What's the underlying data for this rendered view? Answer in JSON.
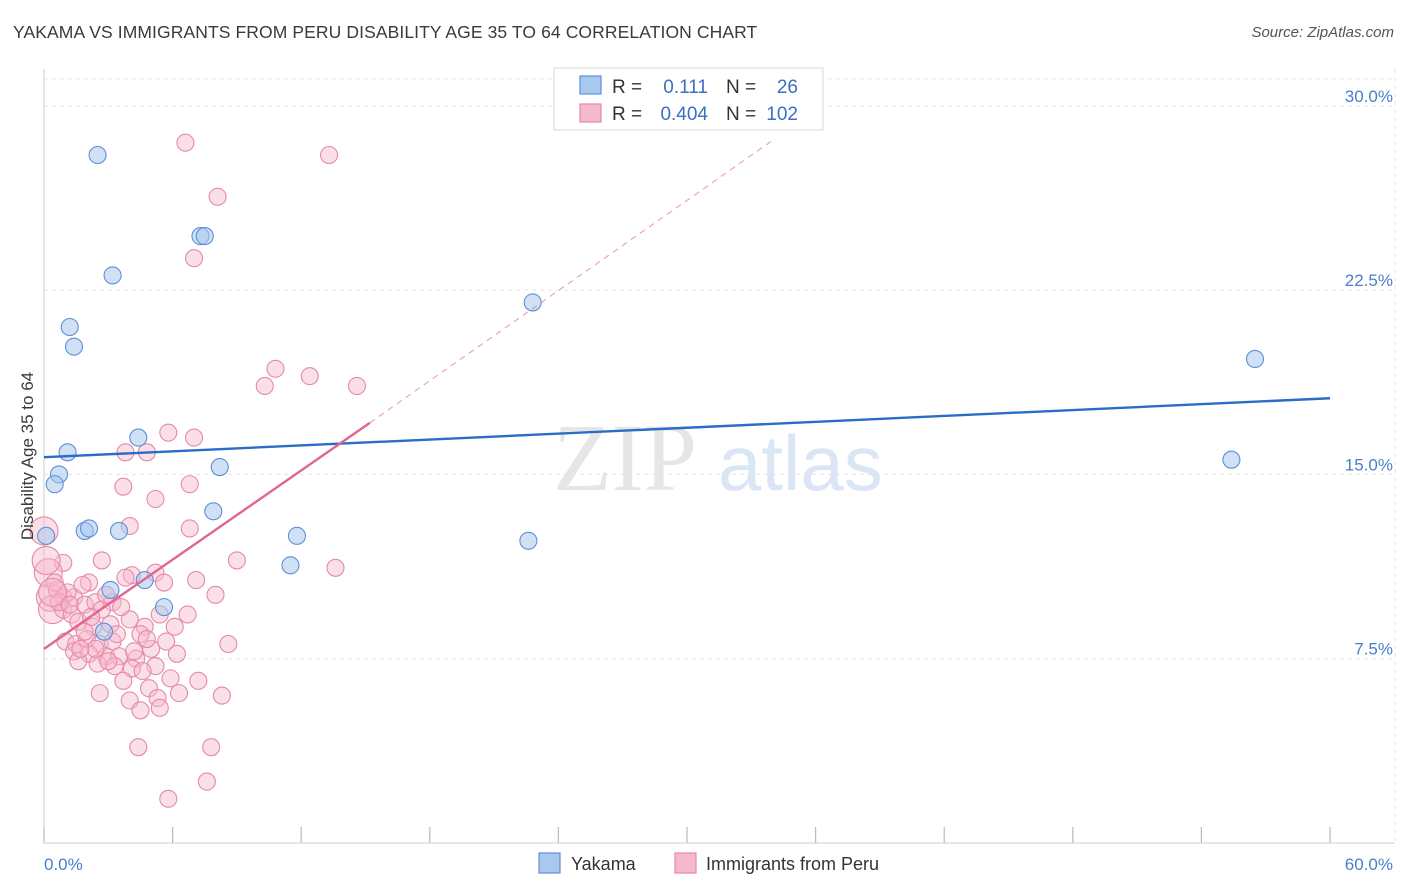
{
  "title": "YAKAMA VS IMMIGRANTS FROM PERU DISABILITY AGE 35 TO 64 CORRELATION CHART",
  "source": "Source: ZipAtlas.com",
  "watermark": {
    "zip": "ZIP",
    "atlas": "atlas"
  },
  "colors": {
    "yakama_fill": "#a9c8ee",
    "yakama_stroke": "#5d8fd6",
    "yakama_line": "#2a6cc8",
    "peru_fill": "#f6b8cb",
    "peru_stroke": "#e58aa7",
    "peru_line": "#e06690",
    "tick_text": "#4a7fc8",
    "grid": "#e3e3e3"
  },
  "legend": {
    "rows": [
      {
        "r_label": "R =",
        "r_value": "0.111",
        "n_label": "N =",
        "n_value": "26"
      },
      {
        "r_label": "R =",
        "r_value": "0.404",
        "n_label": "N =",
        "n_value": "102"
      }
    ]
  },
  "chart_data": {
    "type": "scatter",
    "title": "YAKAMA VS IMMIGRANTS FROM PERU DISABILITY AGE 35 TO 64 CORRELATION CHART",
    "xlabel": "",
    "ylabel": "Disability Age 35 to 64",
    "xlim": [
      0,
      60
    ],
    "ylim": [
      0,
      31.5
    ],
    "x_tick_labels": [
      {
        "value": 0,
        "label": "0.0%"
      },
      {
        "value": 60,
        "label": "60.0%"
      }
    ],
    "y_ticks": [
      {
        "value": 7.5,
        "label": "7.5%"
      },
      {
        "value": 15,
        "label": "15.0%"
      },
      {
        "value": 22.5,
        "label": "22.5%"
      },
      {
        "value": 30,
        "label": "30.0%"
      }
    ],
    "series": [
      {
        "name": "Yakama",
        "r": 0.111,
        "n": 26,
        "trend": {
          "x0": 0,
          "y0": 15.7,
          "x1": 60,
          "y1": 18.1
        },
        "points": [
          [
            2.5,
            28.0
          ],
          [
            7.3,
            24.7
          ],
          [
            7.5,
            24.7
          ],
          [
            3.2,
            23.1
          ],
          [
            1.2,
            21.0
          ],
          [
            1.4,
            20.2
          ],
          [
            1.1,
            15.9
          ],
          [
            0.7,
            15.0
          ],
          [
            0.5,
            14.6
          ],
          [
            4.4,
            16.5
          ],
          [
            8.2,
            15.3
          ],
          [
            7.9,
            13.5
          ],
          [
            1.9,
            12.7
          ],
          [
            2.1,
            12.8
          ],
          [
            3.5,
            12.7
          ],
          [
            11.8,
            12.5
          ],
          [
            11.5,
            11.3
          ],
          [
            0.1,
            12.5
          ],
          [
            3.1,
            10.3
          ],
          [
            4.7,
            10.7
          ],
          [
            5.6,
            9.6
          ],
          [
            2.8,
            8.6
          ],
          [
            22.6,
            12.3
          ],
          [
            22.8,
            22.0
          ],
          [
            56.5,
            19.7
          ],
          [
            55.4,
            15.6
          ]
        ]
      },
      {
        "name": "Immigrants from Peru",
        "r": 0.404,
        "n": 102,
        "trend": {
          "x0": 0,
          "y0": 7.9,
          "x1": 15.2,
          "y1": 17.1
        },
        "trend_dashed": {
          "x0": 15.2,
          "y0": 17.1,
          "x1": 34.0,
          "y1": 28.6
        },
        "points": [
          [
            6.6,
            28.5
          ],
          [
            13.3,
            28.0
          ],
          [
            8.1,
            26.3
          ],
          [
            7.0,
            23.8
          ],
          [
            10.8,
            19.3
          ],
          [
            12.4,
            19.0
          ],
          [
            10.3,
            18.6
          ],
          [
            14.6,
            18.6
          ],
          [
            5.8,
            16.7
          ],
          [
            7.0,
            16.5
          ],
          [
            4.8,
            15.9
          ],
          [
            3.8,
            15.9
          ],
          [
            3.7,
            14.5
          ],
          [
            6.8,
            14.6
          ],
          [
            5.2,
            14.0
          ],
          [
            0.0,
            12.7
          ],
          [
            4.0,
            12.9
          ],
          [
            6.8,
            12.8
          ],
          [
            0.9,
            11.4
          ],
          [
            2.7,
            11.5
          ],
          [
            4.1,
            10.9
          ],
          [
            5.2,
            11.0
          ],
          [
            2.1,
            10.6
          ],
          [
            5.6,
            10.6
          ],
          [
            7.1,
            10.7
          ],
          [
            9.0,
            11.5
          ],
          [
            13.6,
            11.2
          ],
          [
            8.0,
            10.1
          ],
          [
            0.3,
            10.0
          ],
          [
            0.6,
            10.3
          ],
          [
            0.9,
            10.0
          ],
          [
            1.4,
            10.0
          ],
          [
            1.9,
            9.7
          ],
          [
            2.4,
            9.8
          ],
          [
            3.2,
            9.8
          ],
          [
            3.8,
            10.8
          ],
          [
            0.4,
            9.5
          ],
          [
            0.9,
            9.5
          ],
          [
            1.3,
            9.3
          ],
          [
            2.7,
            9.5
          ],
          [
            5.4,
            9.3
          ],
          [
            1.6,
            9.0
          ],
          [
            2.3,
            8.8
          ],
          [
            3.1,
            8.9
          ],
          [
            4.0,
            9.1
          ],
          [
            4.7,
            8.8
          ],
          [
            6.1,
            8.8
          ],
          [
            1.0,
            8.2
          ],
          [
            1.5,
            8.1
          ],
          [
            2.0,
            8.3
          ],
          [
            2.6,
            8.1
          ],
          [
            3.2,
            8.2
          ],
          [
            4.5,
            8.5
          ],
          [
            8.6,
            8.1
          ],
          [
            1.4,
            7.8
          ],
          [
            2.1,
            7.7
          ],
          [
            2.9,
            7.6
          ],
          [
            3.5,
            7.6
          ],
          [
            4.3,
            7.5
          ],
          [
            5.0,
            7.9
          ],
          [
            6.2,
            7.7
          ],
          [
            1.6,
            7.4
          ],
          [
            2.5,
            7.3
          ],
          [
            3.3,
            7.2
          ],
          [
            4.1,
            7.1
          ],
          [
            5.2,
            7.2
          ],
          [
            5.9,
            6.7
          ],
          [
            7.2,
            6.6
          ],
          [
            3.7,
            6.6
          ],
          [
            4.9,
            6.3
          ],
          [
            2.6,
            6.1
          ],
          [
            4.0,
            5.8
          ],
          [
            5.3,
            5.9
          ],
          [
            6.3,
            6.1
          ],
          [
            8.3,
            6.0
          ],
          [
            4.5,
            5.4
          ],
          [
            5.4,
            5.5
          ],
          [
            4.4,
            3.9
          ],
          [
            7.8,
            3.9
          ],
          [
            7.6,
            2.5
          ],
          [
            5.8,
            1.8
          ],
          [
            0.2,
            11.0
          ],
          [
            0.5,
            10.6
          ],
          [
            1.1,
            10.2
          ],
          [
            1.8,
            10.5
          ],
          [
            0.7,
            9.8
          ],
          [
            2.2,
            9.2
          ],
          [
            3.6,
            9.6
          ],
          [
            4.8,
            8.3
          ],
          [
            2.4,
            7.9
          ],
          [
            3.0,
            7.4
          ],
          [
            4.6,
            7.0
          ],
          [
            1.9,
            8.6
          ],
          [
            6.7,
            9.3
          ],
          [
            5.7,
            8.2
          ],
          [
            0.4,
            10.2
          ],
          [
            1.2,
            9.7
          ],
          [
            2.9,
            10.1
          ],
          [
            3.4,
            8.5
          ],
          [
            4.2,
            7.8
          ],
          [
            1.7,
            7.9
          ],
          [
            0.1,
            11.5
          ]
        ]
      }
    ],
    "legend": [
      "Yakama",
      "Immigrants from Peru"
    ]
  }
}
